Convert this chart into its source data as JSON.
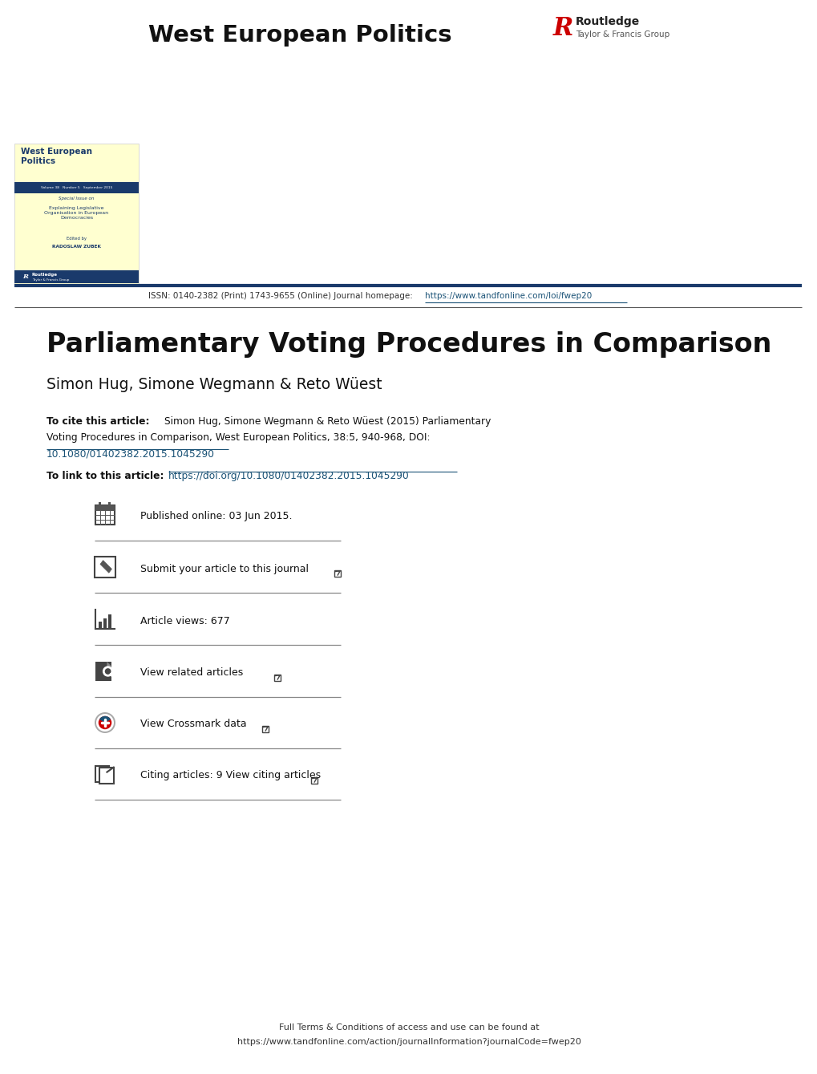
{
  "bg_color": "#ffffff",
  "cover_bg": "#ffffd0",
  "cover_bar_color": "#1a3a6b",
  "journal_title_header": "West European Politics",
  "article_title": "Parliamentary Voting Procedures in Comparison",
  "authors": "Simon Hug, Simone Wegmann & Reto Wüest",
  "cite_bold": "To cite this article:",
  "cite_rest": " Simon Hug, Simone Wegmann & Reto Wüest (2015) Parliamentary\nVoting Procedures in Comparison, West European Politics, 38:5, 940-968, DOI:",
  "cite_doi": "10.1080/01402382.2015.1045290",
  "link_bold": "To link to this article: ",
  "link_url": "https://doi.org/10.1080/01402382.2015.1045290",
  "issn_plain": "ISSN: 0140-2382 (Print) 1743-9655 (Online) Journal homepage: ",
  "issn_url": "https://www.tandfonline.com/loi/fwep20",
  "published_text": "Published online: 03 Jun 2015.",
  "submit_text": "Submit your article to this journal",
  "views_text": "Article views: 677",
  "related_text": "View related articles",
  "crossmark_text": "View Crossmark data",
  "citing_text": "Citing articles: 9 View citing articles",
  "footer_line1": "Full Terms & Conditions of access and use can be found at",
  "footer_line2": "https://www.tandfonline.com/action/journalInformation?journalCode=fwep20",
  "separator_color": "#888888",
  "link_color": "#1a5276",
  "top_bar_color": "#1a3a6b",
  "routledge_red": "#cc0000",
  "text_color": "#111111",
  "cover_title_color": "#1a3a6b"
}
